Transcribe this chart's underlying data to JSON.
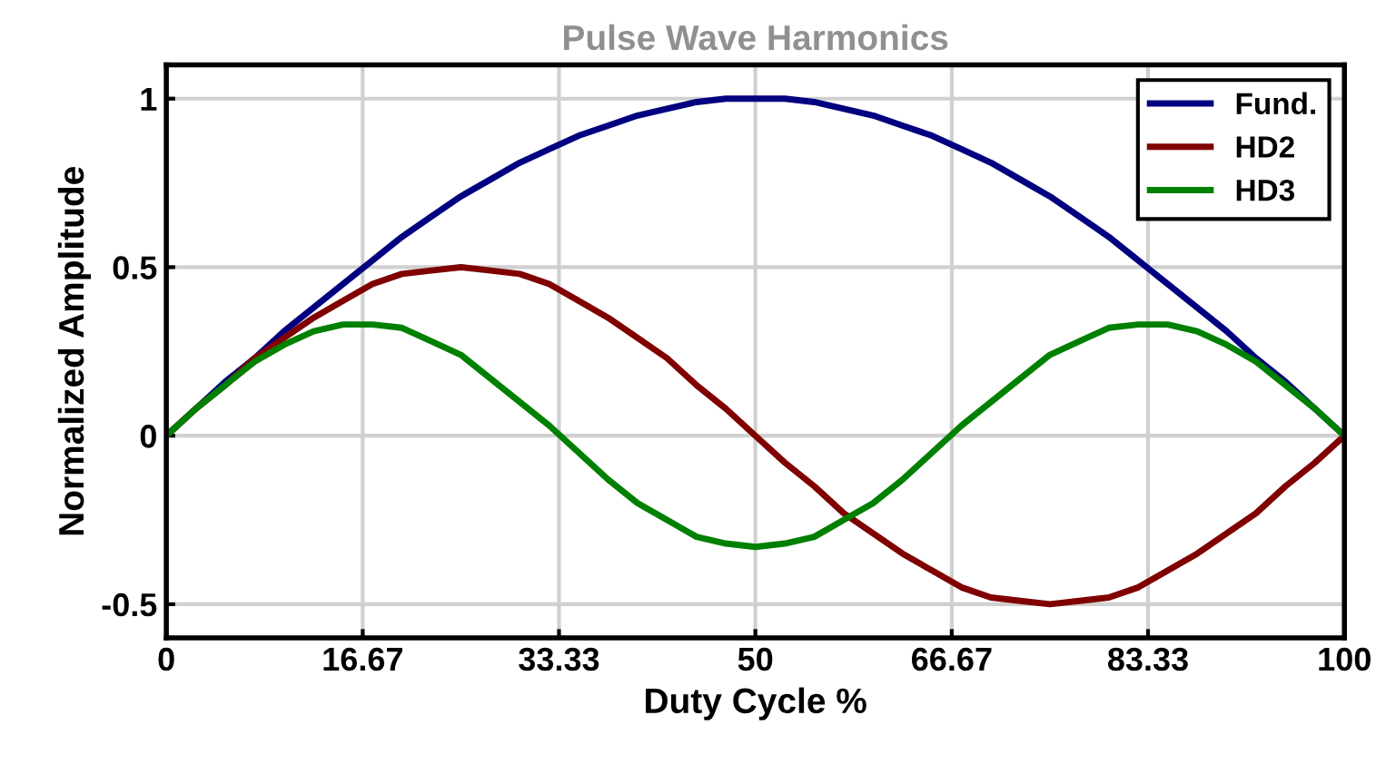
{
  "chart_data": {
    "type": "line",
    "title": "Pulse Wave Harmonics",
    "xlabel": "Duty Cycle %",
    "ylabel": "Normalized Amplitude",
    "x": [
      0,
      2.5,
      5,
      7.5,
      10,
      12.5,
      15,
      17.5,
      20,
      22.5,
      25,
      27.5,
      30,
      32.5,
      35,
      37.5,
      40,
      42.5,
      45,
      47.5,
      50,
      52.5,
      55,
      57.5,
      60,
      62.5,
      65,
      67.5,
      70,
      72.5,
      75,
      77.5,
      80,
      82.5,
      85,
      87.5,
      90,
      92.5,
      95,
      97.5,
      100
    ],
    "series": [
      {
        "name": "Fund.",
        "color": "#000080",
        "values": [
          0,
          0.08,
          0.16,
          0.23,
          0.31,
          0.38,
          0.45,
          0.52,
          0.59,
          0.65,
          0.71,
          0.76,
          0.81,
          0.85,
          0.89,
          0.92,
          0.95,
          0.97,
          0.99,
          1.0,
          1,
          1.0,
          0.99,
          0.97,
          0.95,
          0.92,
          0.89,
          0.85,
          0.81,
          0.76,
          0.71,
          0.65,
          0.59,
          0.52,
          0.45,
          0.38,
          0.31,
          0.23,
          0.16,
          0.08,
          0
        ]
      },
      {
        "name": "HD2",
        "color": "#800000",
        "values": [
          0,
          0.08,
          0.15,
          0.23,
          0.29,
          0.35,
          0.4,
          0.45,
          0.48,
          0.49,
          0.5,
          0.49,
          0.48,
          0.45,
          0.4,
          0.35,
          0.29,
          0.23,
          0.15,
          0.08,
          0,
          -0.08,
          -0.15,
          -0.23,
          -0.29,
          -0.35,
          -0.4,
          -0.45,
          -0.48,
          -0.49,
          -0.5,
          -0.49,
          -0.48,
          -0.45,
          -0.4,
          -0.35,
          -0.29,
          -0.23,
          -0.15,
          -0.08,
          0
        ]
      },
      {
        "name": "HD3",
        "color": "#008000",
        "values": [
          0,
          0.08,
          0.15,
          0.22,
          0.27,
          0.31,
          0.33,
          0.33,
          0.32,
          0.28,
          0.24,
          0.17,
          0.1,
          0.03,
          -0.05,
          -0.13,
          -0.2,
          -0.25,
          -0.3,
          -0.32,
          -0.33,
          -0.32,
          -0.3,
          -0.25,
          -0.2,
          -0.13,
          -0.05,
          0.03,
          0.1,
          0.17,
          0.24,
          0.28,
          0.32,
          0.33,
          0.33,
          0.31,
          0.27,
          0.22,
          0.15,
          0.08,
          0
        ]
      }
    ],
    "xlim": [
      0,
      100
    ],
    "xticks": [
      0,
      16.67,
      33.33,
      50,
      66.67,
      83.33,
      100
    ],
    "ylim": [
      -0.6,
      1.1
    ],
    "yticks": [
      -0.5,
      0,
      0.5,
      1
    ],
    "grid": true,
    "legend": "top right",
    "line_style": "solid"
  }
}
